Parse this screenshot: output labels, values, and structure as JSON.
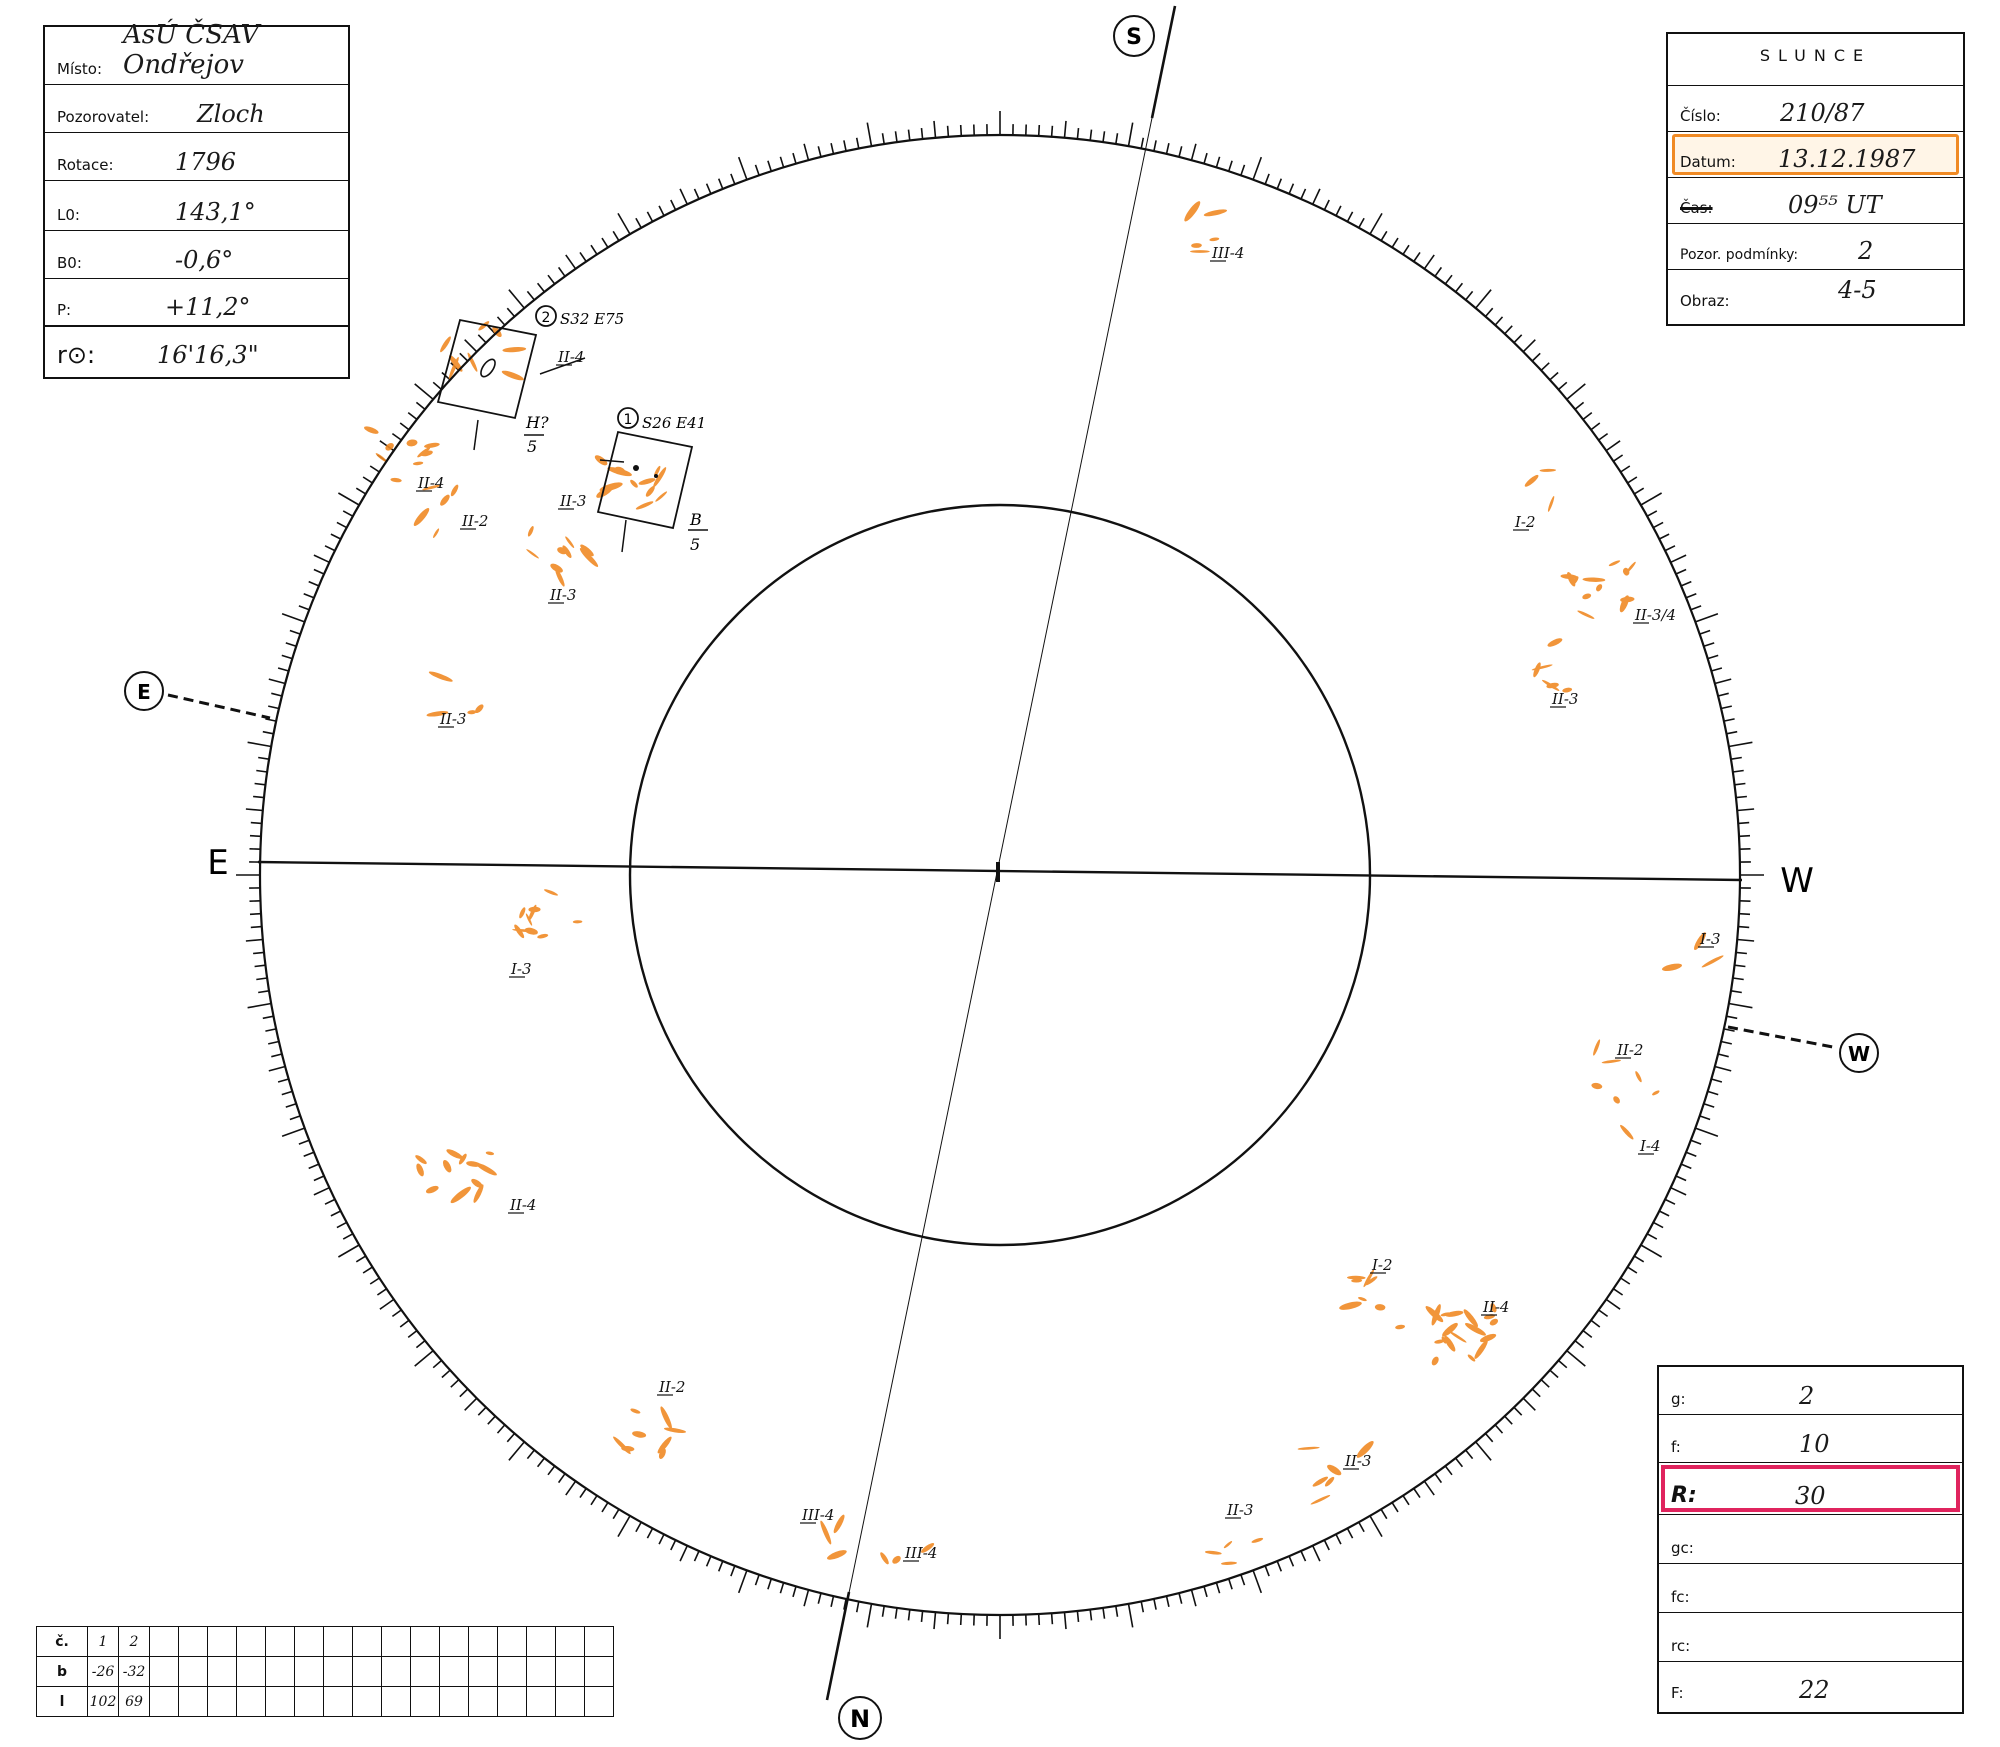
{
  "info_box": {
    "misto_label": "Místo:",
    "misto_value": "AsÚ ČSAV Ondřejov",
    "pozorovatel_label": "Pozorovatel:",
    "pozorovatel_value": "Zloch",
    "rotace_label": "Rotace:",
    "rotace_value": "1796",
    "l0_label": "L0:",
    "l0_value": "143,1°",
    "b0_label": "B0:",
    "b0_value": "-0,6°",
    "p_label": "P:",
    "p_value": "+11,2°",
    "r_label": "r⊙:",
    "r_value": "16'16,3\""
  },
  "slunce_box": {
    "title": "SLUNCE",
    "cislo_label": "Číslo:",
    "cislo_value": "210/87",
    "datum_label": "Datum:",
    "datum_value": "13.12.1987",
    "cas_label": "Čas:",
    "cas_value": "09⁵⁵ UT",
    "podminky_label": "Pozor. podmínky:",
    "podminky_value": "2",
    "obraz_label": "Obraz:",
    "obraz_value": "4-5"
  },
  "counts_box": {
    "g_label": "g:",
    "g_value": "2",
    "f_label": "f:",
    "f_value": "10",
    "R_label": "R:",
    "R_value": "30",
    "gc_label": "gc:",
    "gc_value": "",
    "fc_label": "fc:",
    "fc_value": "",
    "rc_label": "rc:",
    "rc_value": "",
    "F_label": "F:",
    "F_value": "22"
  },
  "group_table": {
    "row_labels": [
      "č.",
      "b",
      "l"
    ],
    "c": [
      "1",
      "2"
    ],
    "b": [
      "-26",
      "-32"
    ],
    "l": [
      "102",
      "69"
    ]
  },
  "directions": {
    "S": "S",
    "N": "N",
    "E_circle": "E",
    "W_circle": "W",
    "E": "E",
    "W": "W"
  },
  "groups": {
    "g1_number": "1",
    "g1_coords": "S26 E41",
    "g1_class": "B",
    "g1_count": "5",
    "g2_number": "2",
    "g2_coords": "S32 E75",
    "g2_class": "H?",
    "g2_count": "5"
  },
  "facula_labels": [
    "III-4",
    "II-4",
    "II-4",
    "II-2",
    "II-3",
    "II-3",
    "II-3",
    "I-2",
    "II-3/4",
    "II-3",
    "I-3",
    "I-3",
    "II-2",
    "I-4",
    "II-4",
    "I-2",
    "II-4",
    "II-2",
    "II-3",
    "II-3",
    "III-4",
    "III-4"
  ],
  "colors": {
    "ink": "#111111",
    "facula": "#f08a24",
    "highlight_orange": "#f08a24",
    "highlight_red": "#e0245e"
  }
}
